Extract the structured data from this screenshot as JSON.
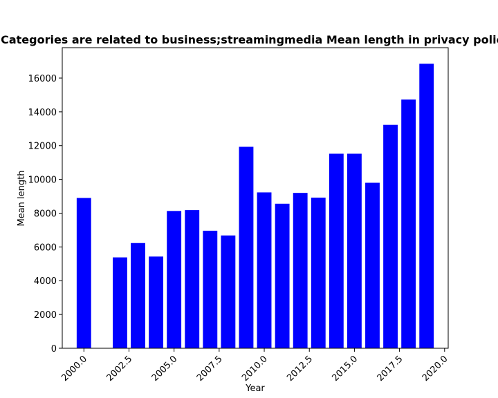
{
  "chart_data": {
    "type": "bar",
    "title": "Categories are related to business;streamingmedia Mean length in privacy policies",
    "xlabel": "Year",
    "ylabel": "Mean length",
    "x": [
      2000,
      2002,
      2003,
      2004,
      2005,
      2006,
      2007,
      2008,
      2009,
      2010,
      2011,
      2012,
      2013,
      2014,
      2015,
      2016,
      2017,
      2018,
      2019
    ],
    "values": [
      8900,
      5380,
      6230,
      5430,
      8130,
      8180,
      6960,
      6680,
      11930,
      9230,
      8560,
      9200,
      8920,
      11520,
      11520,
      9800,
      13230,
      14730,
      16850
    ],
    "xlim": [
      1998.8,
      2020.2
    ],
    "ylim": [
      0,
      17800
    ],
    "xticks": [
      2000.0,
      2002.5,
      2005.0,
      2007.5,
      2010.0,
      2012.5,
      2015.0,
      2017.5,
      2020.0
    ],
    "xtick_labels": [
      "2000.0",
      "2002.5",
      "2005.0",
      "2007.5",
      "2010.0",
      "2012.5",
      "2015.0",
      "2017.5",
      "2020.0"
    ],
    "yticks": [
      0,
      2000,
      4000,
      6000,
      8000,
      10000,
      12000,
      14000,
      16000
    ],
    "ytick_labels": [
      "0",
      "2000",
      "4000",
      "6000",
      "8000",
      "10000",
      "12000",
      "14000",
      "16000"
    ],
    "bar_color": "#0000ff",
    "grid": false,
    "legend": "none"
  }
}
